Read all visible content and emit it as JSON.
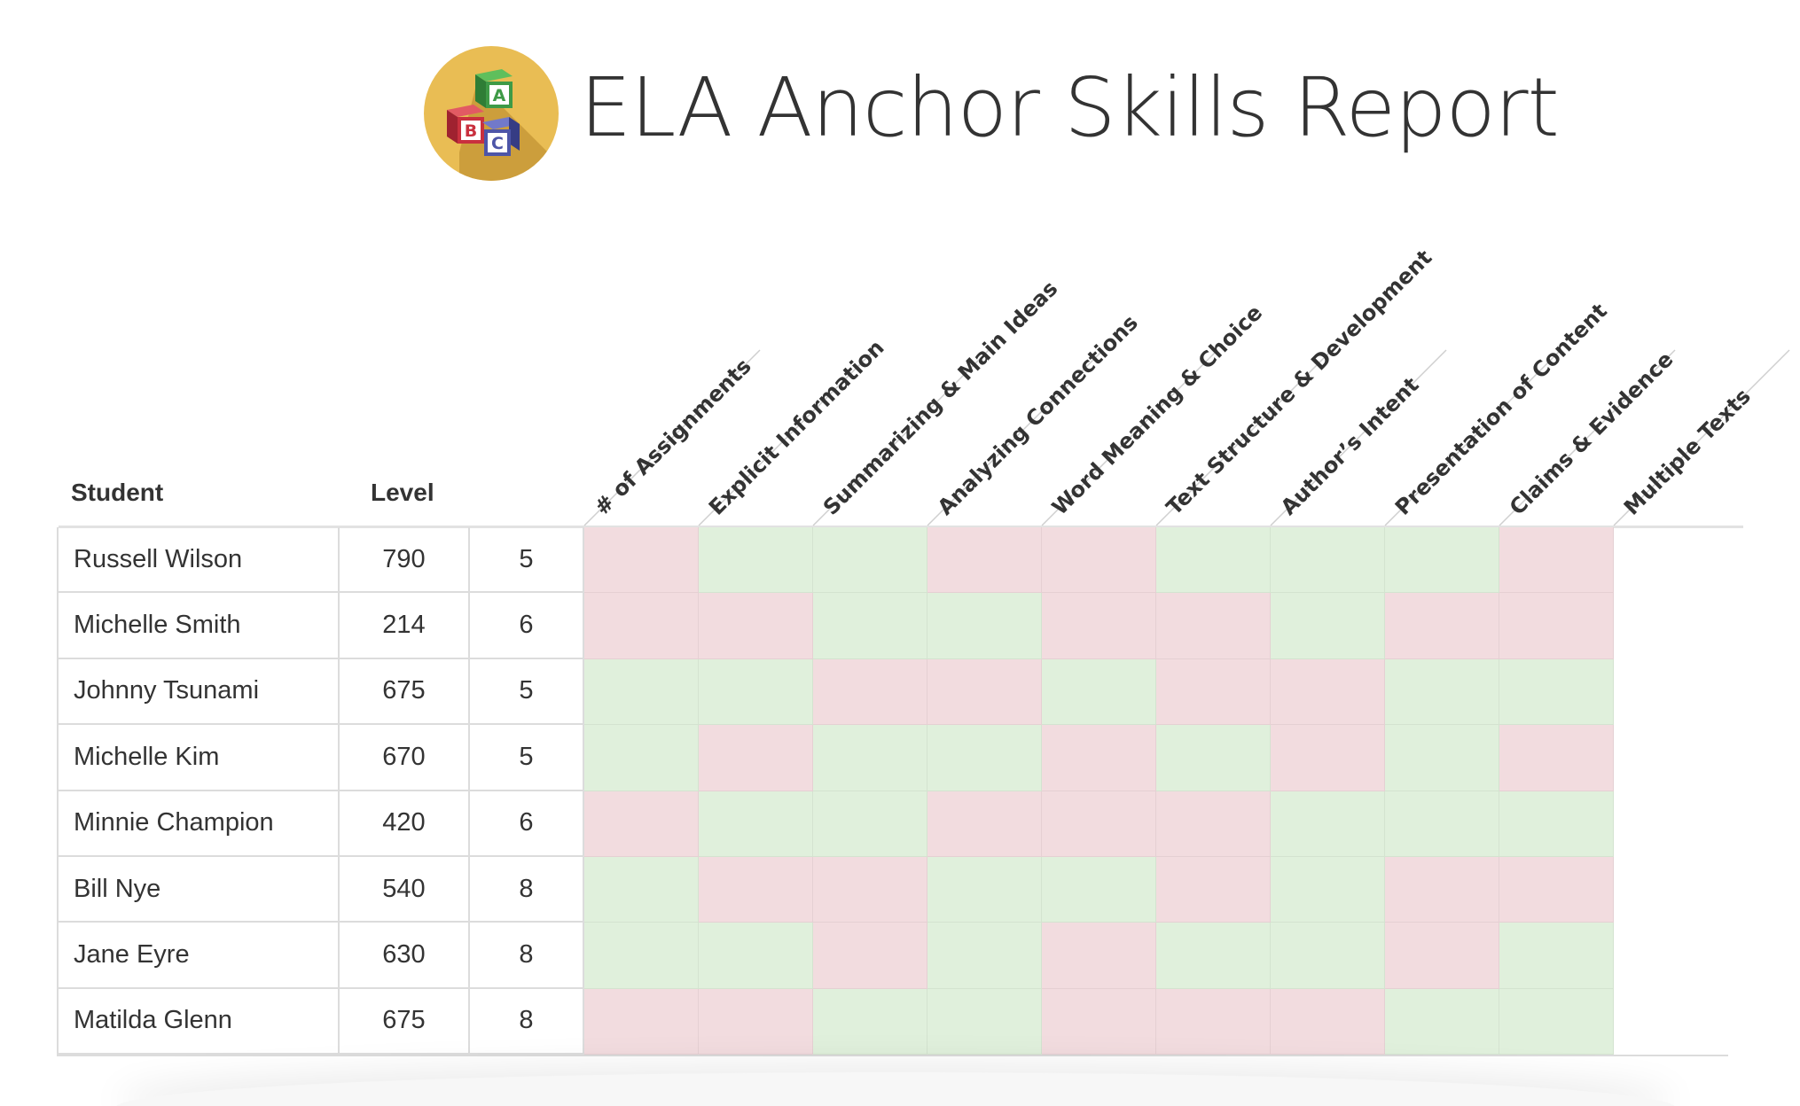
{
  "header": {
    "title": "ELA Anchor Skills Report",
    "logo_letters": [
      "A",
      "B",
      "C"
    ],
    "logo_colors": {
      "circle": "#e9bd54",
      "circle_shadow": "#c99a3a",
      "block_a": "#3e9a46",
      "block_b": "#c9303e",
      "block_c": "#4d55a8"
    }
  },
  "table": {
    "columns": {
      "student": "Student",
      "level": "Level"
    },
    "skills": [
      "# of Assignments",
      "Explicit Information",
      "Summarizing & Main Ideas",
      "Analyzing Connections",
      "Word Meaning & Choice",
      "Text Structure & Development",
      "Author’s Intent",
      "Presentation of Content",
      "Claims & Evidence",
      "Multiple Texts"
    ],
    "colors": {
      "pass": "#e0f0dc",
      "fail": "#f2dcdf"
    },
    "rows": [
      {
        "name": "Russell Wilson",
        "level": "790",
        "grade": "5",
        "cells": [
          "fail",
          "pass",
          "pass",
          "fail",
          "fail",
          "pass",
          "pass",
          "pass",
          "fail"
        ]
      },
      {
        "name": "Michelle Smith",
        "level": "214",
        "grade": "6",
        "cells": [
          "fail",
          "fail",
          "pass",
          "pass",
          "fail",
          "fail",
          "pass",
          "fail",
          "fail"
        ]
      },
      {
        "name": "Johnny Tsunami",
        "level": "675",
        "grade": "5",
        "cells": [
          "pass",
          "pass",
          "fail",
          "fail",
          "pass",
          "fail",
          "fail",
          "pass",
          "pass"
        ]
      },
      {
        "name": "Michelle Kim",
        "level": "670",
        "grade": "5",
        "cells": [
          "pass",
          "fail",
          "pass",
          "pass",
          "fail",
          "pass",
          "fail",
          "pass",
          "fail"
        ]
      },
      {
        "name": "Minnie Champion",
        "level": "420",
        "grade": "6",
        "cells": [
          "fail",
          "pass",
          "pass",
          "fail",
          "fail",
          "fail",
          "pass",
          "pass",
          "pass"
        ]
      },
      {
        "name": "Bill Nye",
        "level": "540",
        "grade": "8",
        "cells": [
          "pass",
          "fail",
          "fail",
          "pass",
          "pass",
          "fail",
          "pass",
          "fail",
          "fail"
        ]
      },
      {
        "name": "Jane Eyre",
        "level": "630",
        "grade": "8",
        "cells": [
          "pass",
          "pass",
          "fail",
          "pass",
          "fail",
          "pass",
          "pass",
          "fail",
          "pass"
        ]
      },
      {
        "name": "Matilda Glenn",
        "level": "675",
        "grade": "8",
        "cells": [
          "fail",
          "fail",
          "pass",
          "pass",
          "fail",
          "fail",
          "fail",
          "pass",
          "pass"
        ]
      }
    ]
  }
}
